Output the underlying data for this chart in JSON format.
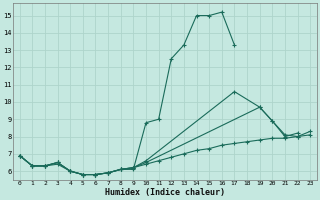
{
  "xlabel": "Humidex (Indice chaleur)",
  "bg_color": "#c5e8e0",
  "grid_color": "#aed4cb",
  "line_color": "#1a6b5a",
  "x_ticks": [
    0,
    1,
    2,
    3,
    4,
    5,
    6,
    7,
    8,
    9,
    10,
    11,
    12,
    13,
    14,
    15,
    16,
    17,
    18,
    19,
    20,
    21,
    22,
    23
  ],
  "y_ticks": [
    6,
    7,
    8,
    9,
    10,
    11,
    12,
    13,
    14,
    15
  ],
  "ylim": [
    5.5,
    15.7
  ],
  "xlim": [
    -0.5,
    23.5
  ],
  "line_a_x": [
    0,
    1,
    2,
    3,
    4,
    5,
    6,
    7,
    8,
    9,
    10,
    11,
    12,
    13,
    14,
    15,
    16,
    17
  ],
  "line_a_y": [
    6.9,
    6.3,
    6.3,
    6.5,
    6.0,
    5.8,
    5.8,
    5.9,
    6.1,
    6.1,
    8.8,
    9.0,
    12.5,
    13.3,
    15.0,
    15.0,
    15.2,
    13.3
  ],
  "line_b_x": [
    0,
    1,
    2,
    3,
    4,
    5,
    6,
    7,
    8,
    9,
    10,
    17,
    19,
    20,
    21,
    22
  ],
  "line_b_y": [
    6.9,
    6.3,
    6.3,
    6.5,
    6.0,
    5.8,
    5.8,
    5.9,
    6.1,
    6.2,
    6.6,
    10.6,
    9.7,
    8.9,
    8.0,
    8.2
  ],
  "line_c_x": [
    0,
    1,
    2,
    3,
    4,
    5,
    6,
    7,
    8,
    9,
    10,
    19,
    20,
    21,
    22,
    23
  ],
  "line_c_y": [
    6.9,
    6.3,
    6.3,
    6.5,
    6.0,
    5.8,
    5.8,
    5.9,
    6.1,
    6.2,
    6.5,
    9.7,
    8.9,
    8.1,
    8.0,
    8.3
  ],
  "line_d_x": [
    0,
    1,
    2,
    3,
    4,
    5,
    6,
    7,
    8,
    9,
    10,
    11,
    12,
    13,
    14,
    15,
    16,
    17,
    18,
    19,
    20,
    21,
    22,
    23
  ],
  "line_d_y": [
    6.9,
    6.3,
    6.3,
    6.4,
    6.0,
    5.8,
    5.8,
    5.9,
    6.1,
    6.2,
    6.4,
    6.6,
    6.8,
    7.0,
    7.2,
    7.3,
    7.5,
    7.6,
    7.7,
    7.8,
    7.9,
    7.9,
    8.0,
    8.1
  ]
}
